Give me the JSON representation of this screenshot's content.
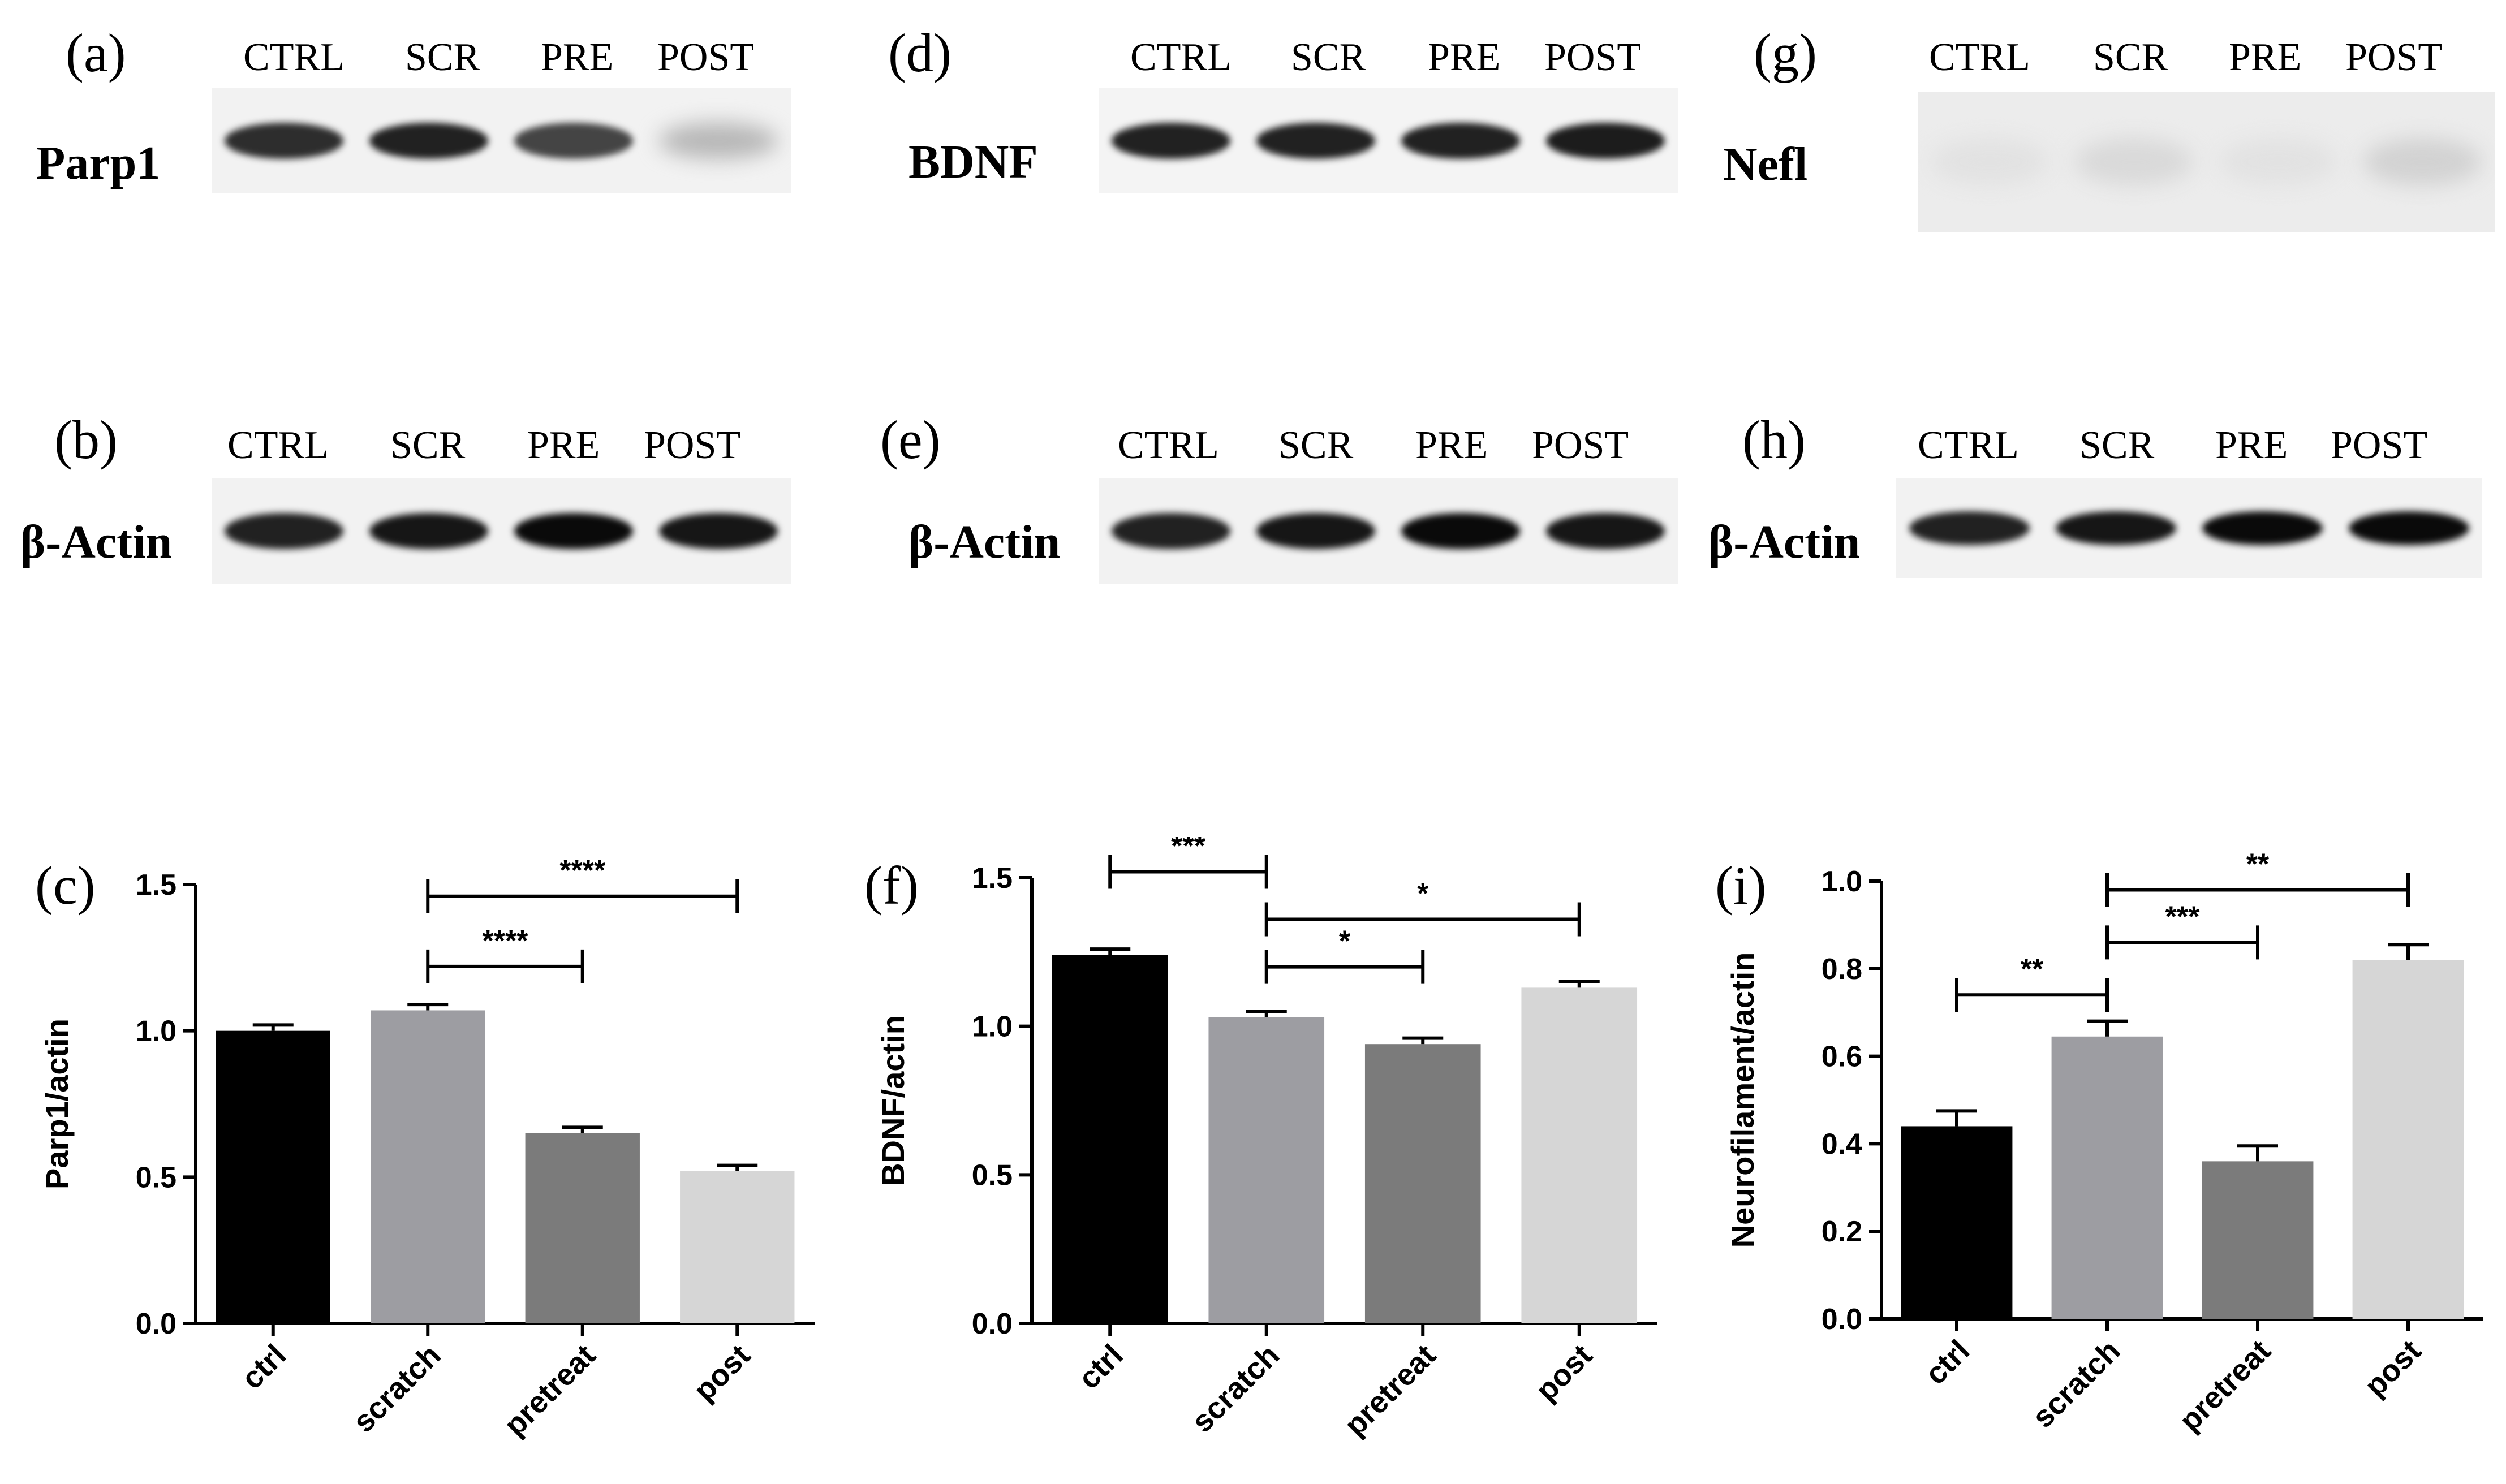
{
  "panels": {
    "a": "(a)",
    "b": "(b)",
    "c": "(c)",
    "d": "(d)",
    "e": "(e)",
    "f": "(f)",
    "g": "(g)",
    "h": "(h)",
    "i": "(i)"
  },
  "blots": [
    {
      "id": "a",
      "protein": "Parp1",
      "lanes": [
        "CTRL",
        "SCR",
        "PRE",
        "POST"
      ],
      "band_intensity": [
        0.85,
        0.9,
        0.75,
        0.25
      ],
      "background": "#f2f2f2"
    },
    {
      "id": "b",
      "protein": "β-Actin",
      "lanes": [
        "CTRL",
        "SCR",
        "PRE",
        "POST"
      ],
      "band_intensity": [
        0.9,
        0.95,
        1.0,
        0.95
      ],
      "background": "#f2f2f2"
    },
    {
      "id": "d",
      "protein": "BDNF",
      "lanes": [
        "CTRL",
        "SCR",
        "PRE",
        "POST"
      ],
      "band_intensity": [
        0.9,
        0.9,
        0.9,
        0.92
      ],
      "background": "#f4f4f4"
    },
    {
      "id": "e",
      "protein": "β-Actin",
      "lanes": [
        "CTRL",
        "SCR",
        "PRE",
        "POST"
      ],
      "band_intensity": [
        0.9,
        0.95,
        1.0,
        0.95
      ],
      "background": "#f2f2f2"
    },
    {
      "id": "g",
      "protein": "Nefl",
      "lanes": [
        "CTRL",
        "SCR",
        "PRE",
        "POST"
      ],
      "band_intensity": [
        0.06,
        0.1,
        0.06,
        0.13
      ],
      "background": "#ececec"
    },
    {
      "id": "h",
      "protein": "β-Actin",
      "lanes": [
        "CTRL",
        "SCR",
        "PRE",
        "POST"
      ],
      "band_intensity": [
        0.9,
        0.95,
        1.0,
        1.0
      ],
      "background": "#f2f2f2"
    }
  ],
  "colors": {
    "ctrl": "#000000",
    "scratch": "#9d9da2",
    "pretreat": "#7b7b7b",
    "post": "#d6d6d6"
  },
  "chart_data": [
    {
      "id": "c",
      "type": "bar",
      "categories": [
        "ctrl",
        "scratch",
        "pretreat",
        "post"
      ],
      "values": [
        1.0,
        1.07,
        0.65,
        0.52
      ],
      "errors": [
        0.02,
        0.02,
        0.02,
        0.02
      ],
      "ylabel": "Parp1/actin",
      "ylim": [
        0,
        1.5
      ],
      "yticks": [
        "0.0",
        "0.5",
        "1.0",
        "1.5"
      ],
      "ytick_values": [
        0,
        0.5,
        1.0,
        1.5
      ],
      "significance": [
        {
          "from": 1,
          "to": 3,
          "label": "****",
          "y": 1.46
        },
        {
          "from": 1,
          "to": 2,
          "label": "****",
          "y": 1.22
        }
      ]
    },
    {
      "id": "f",
      "type": "bar",
      "categories": [
        "ctrl",
        "scratch",
        "pretreat",
        "post"
      ],
      "values": [
        1.24,
        1.03,
        0.94,
        1.13
      ],
      "errors": [
        0.02,
        0.02,
        0.02,
        0.02
      ],
      "ylabel": "BDNF/actin",
      "ylim": [
        0,
        1.5
      ],
      "yticks": [
        "0.0",
        "0.5",
        "1.0",
        "1.5"
      ],
      "ytick_values": [
        0,
        0.5,
        1.0,
        1.5
      ],
      "significance": [
        {
          "from": 0,
          "to": 1,
          "label": "***",
          "y": 1.52
        },
        {
          "from": 1,
          "to": 3,
          "label": "*",
          "y": 1.36
        },
        {
          "from": 1,
          "to": 2,
          "label": "*",
          "y": 1.2
        }
      ]
    },
    {
      "id": "i",
      "type": "bar",
      "categories": [
        "ctrl",
        "scratch",
        "pretreat",
        "post"
      ],
      "values": [
        0.44,
        0.645,
        0.36,
        0.82
      ],
      "errors": [
        0.035,
        0.035,
        0.035,
        0.035
      ],
      "ylabel": "Neurofilament/actin",
      "ylim": [
        0,
        1.0
      ],
      "yticks": [
        "0.0",
        "0.2",
        "0.4",
        "0.6",
        "0.8",
        "1.0"
      ],
      "ytick_values": [
        0,
        0.2,
        0.4,
        0.6,
        0.8,
        1.0
      ],
      "significance": [
        {
          "from": 1,
          "to": 3,
          "label": "**",
          "y": 0.98
        },
        {
          "from": 1,
          "to": 2,
          "label": "***",
          "y": 0.86
        },
        {
          "from": 0,
          "to": 1,
          "label": "**",
          "y": 0.74
        }
      ]
    }
  ]
}
